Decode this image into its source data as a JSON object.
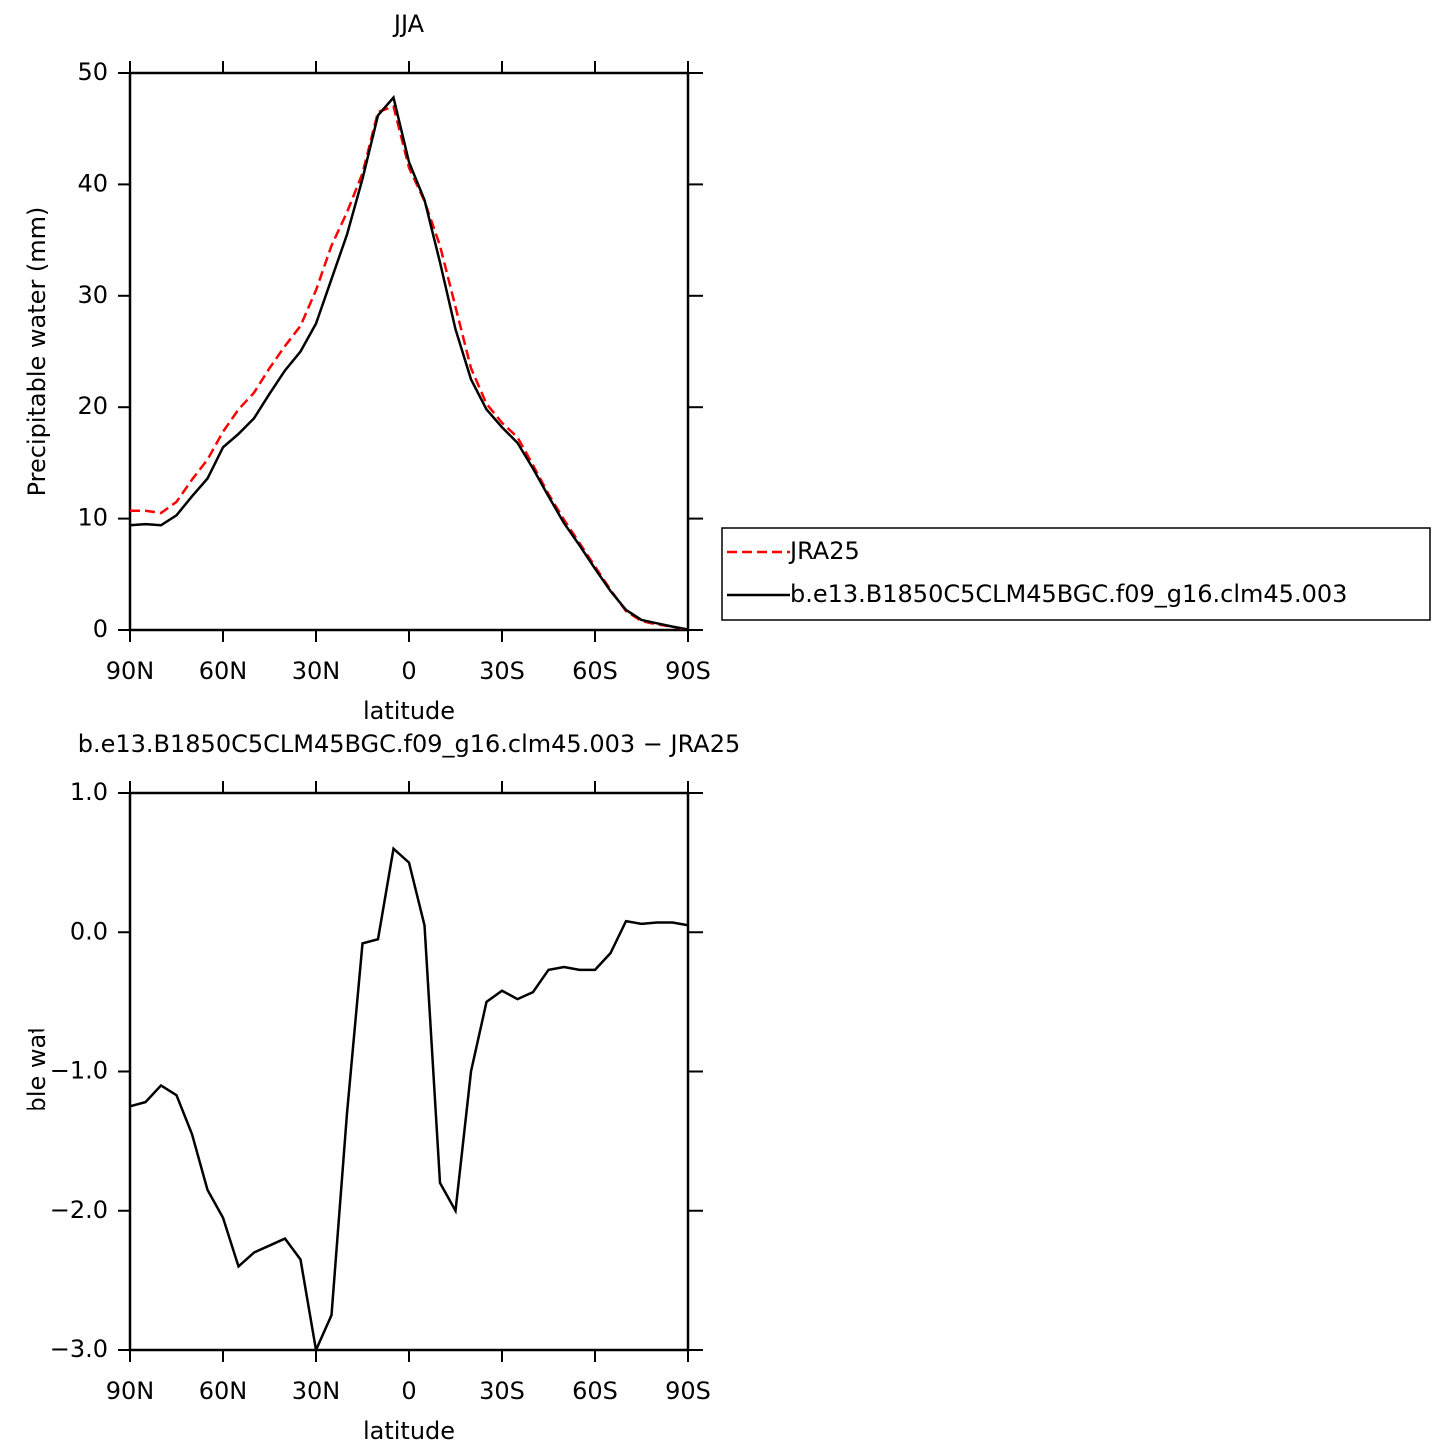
{
  "chart_data": [
    {
      "type": "line",
      "title": "JJA",
      "xlabel": "latitude",
      "ylabel": "Precipitable water (mm)",
      "x": [
        90,
        85,
        80,
        75,
        70,
        65,
        60,
        55,
        50,
        45,
        40,
        35,
        30,
        25,
        20,
        15,
        10,
        5,
        0,
        -5,
        -10,
        -15,
        -20,
        -25,
        -30,
        -35,
        -40,
        -45,
        -50,
        -55,
        -60,
        -65,
        -70,
        -75,
        -80,
        -85,
        -90
      ],
      "xlim": [
        90,
        -90
      ],
      "xticks": [
        {
          "value": 90,
          "label": "90N"
        },
        {
          "value": 60,
          "label": "60N"
        },
        {
          "value": 30,
          "label": "30N"
        },
        0,
        {
          "value": -30,
          "label": "30S"
        },
        {
          "value": -60,
          "label": "60S"
        },
        {
          "value": -90,
          "label": "90S"
        }
      ],
      "ylim": [
        0,
        50
      ],
      "yticks": [
        0,
        10,
        20,
        30,
        40,
        50
      ],
      "series": [
        {
          "name": "JRA25",
          "color": "#ff0000",
          "dashed": true,
          "values": [
            10.7,
            10.7,
            10.5,
            11.5,
            13.5,
            15.3,
            17.8,
            19.8,
            21.3,
            23.5,
            25.5,
            27.3,
            30.5,
            34.5,
            37.5,
            41.0,
            46.5,
            47.0,
            41.5,
            38.5,
            34.5,
            29.0,
            23.5,
            20.3,
            18.6,
            17.3,
            14.8,
            12.2,
            9.9,
            7.8,
            5.7,
            3.6,
            1.7,
            0.8,
            0.5,
            0.3,
            0.0
          ]
        },
        {
          "name": "b.e13.B1850C5CLM45BGC.f09_g16.clm45.003",
          "color": "#000000",
          "dashed": false,
          "values": [
            9.4,
            9.5,
            9.4,
            10.3,
            12.0,
            13.6,
            16.4,
            17.6,
            19.0,
            21.2,
            23.3,
            25.0,
            27.5,
            31.5,
            35.5,
            40.5,
            46.2,
            47.8,
            42.0,
            38.6,
            33.0,
            27.0,
            22.5,
            19.8,
            18.2,
            16.8,
            14.5,
            12.0,
            9.6,
            7.6,
            5.5,
            3.5,
            1.8,
            0.9,
            0.6,
            0.3,
            0.05
          ]
        }
      ]
    },
    {
      "type": "line",
      "title": "b.e13.B1850C5CLM45BGC.f09_g16.clm45.003 − JRA25",
      "xlabel": "latitude",
      "ylabel": "Precipitable water (mm)",
      "x": [
        90,
        85,
        80,
        75,
        70,
        65,
        60,
        55,
        50,
        45,
        40,
        35,
        30,
        25,
        20,
        15,
        10,
        5,
        0,
        -5,
        -10,
        -15,
        -20,
        -25,
        -30,
        -35,
        -40,
        -45,
        -50,
        -55,
        -60,
        -65,
        -70,
        -75,
        -80,
        -85,
        -90
      ],
      "xlim": [
        90,
        -90
      ],
      "xticks": [
        {
          "value": 90,
          "label": "90N"
        },
        {
          "value": 60,
          "label": "60N"
        },
        {
          "value": 30,
          "label": "30N"
        },
        0,
        {
          "value": -30,
          "label": "30S"
        },
        {
          "value": -60,
          "label": "60S"
        },
        {
          "value": -90,
          "label": "90S"
        }
      ],
      "ylim": [
        -3,
        1
      ],
      "yticks": [
        {
          "value": -3,
          "label": "−3.0"
        },
        {
          "value": -2,
          "label": "−2.0"
        },
        {
          "value": -1,
          "label": "−1.0"
        },
        {
          "value": 0,
          "label": "0.0"
        },
        {
          "value": 1,
          "label": "1.0"
        }
      ],
      "color": "#000000",
      "values": [
        -1.25,
        -1.22,
        -1.1,
        -1.17,
        -1.45,
        -1.85,
        -2.05,
        -2.4,
        -2.3,
        -2.25,
        -2.2,
        -2.35,
        -3.0,
        -2.75,
        -1.3,
        -0.08,
        -0.05,
        0.6,
        0.5,
        0.05,
        -1.8,
        -2.0,
        -1.0,
        -0.5,
        -0.42,
        -0.48,
        -0.43,
        -0.27,
        -0.25,
        -0.27,
        -0.27,
        -0.15,
        0.08,
        0.06,
        0.07,
        0.07,
        0.05
      ]
    }
  ]
}
